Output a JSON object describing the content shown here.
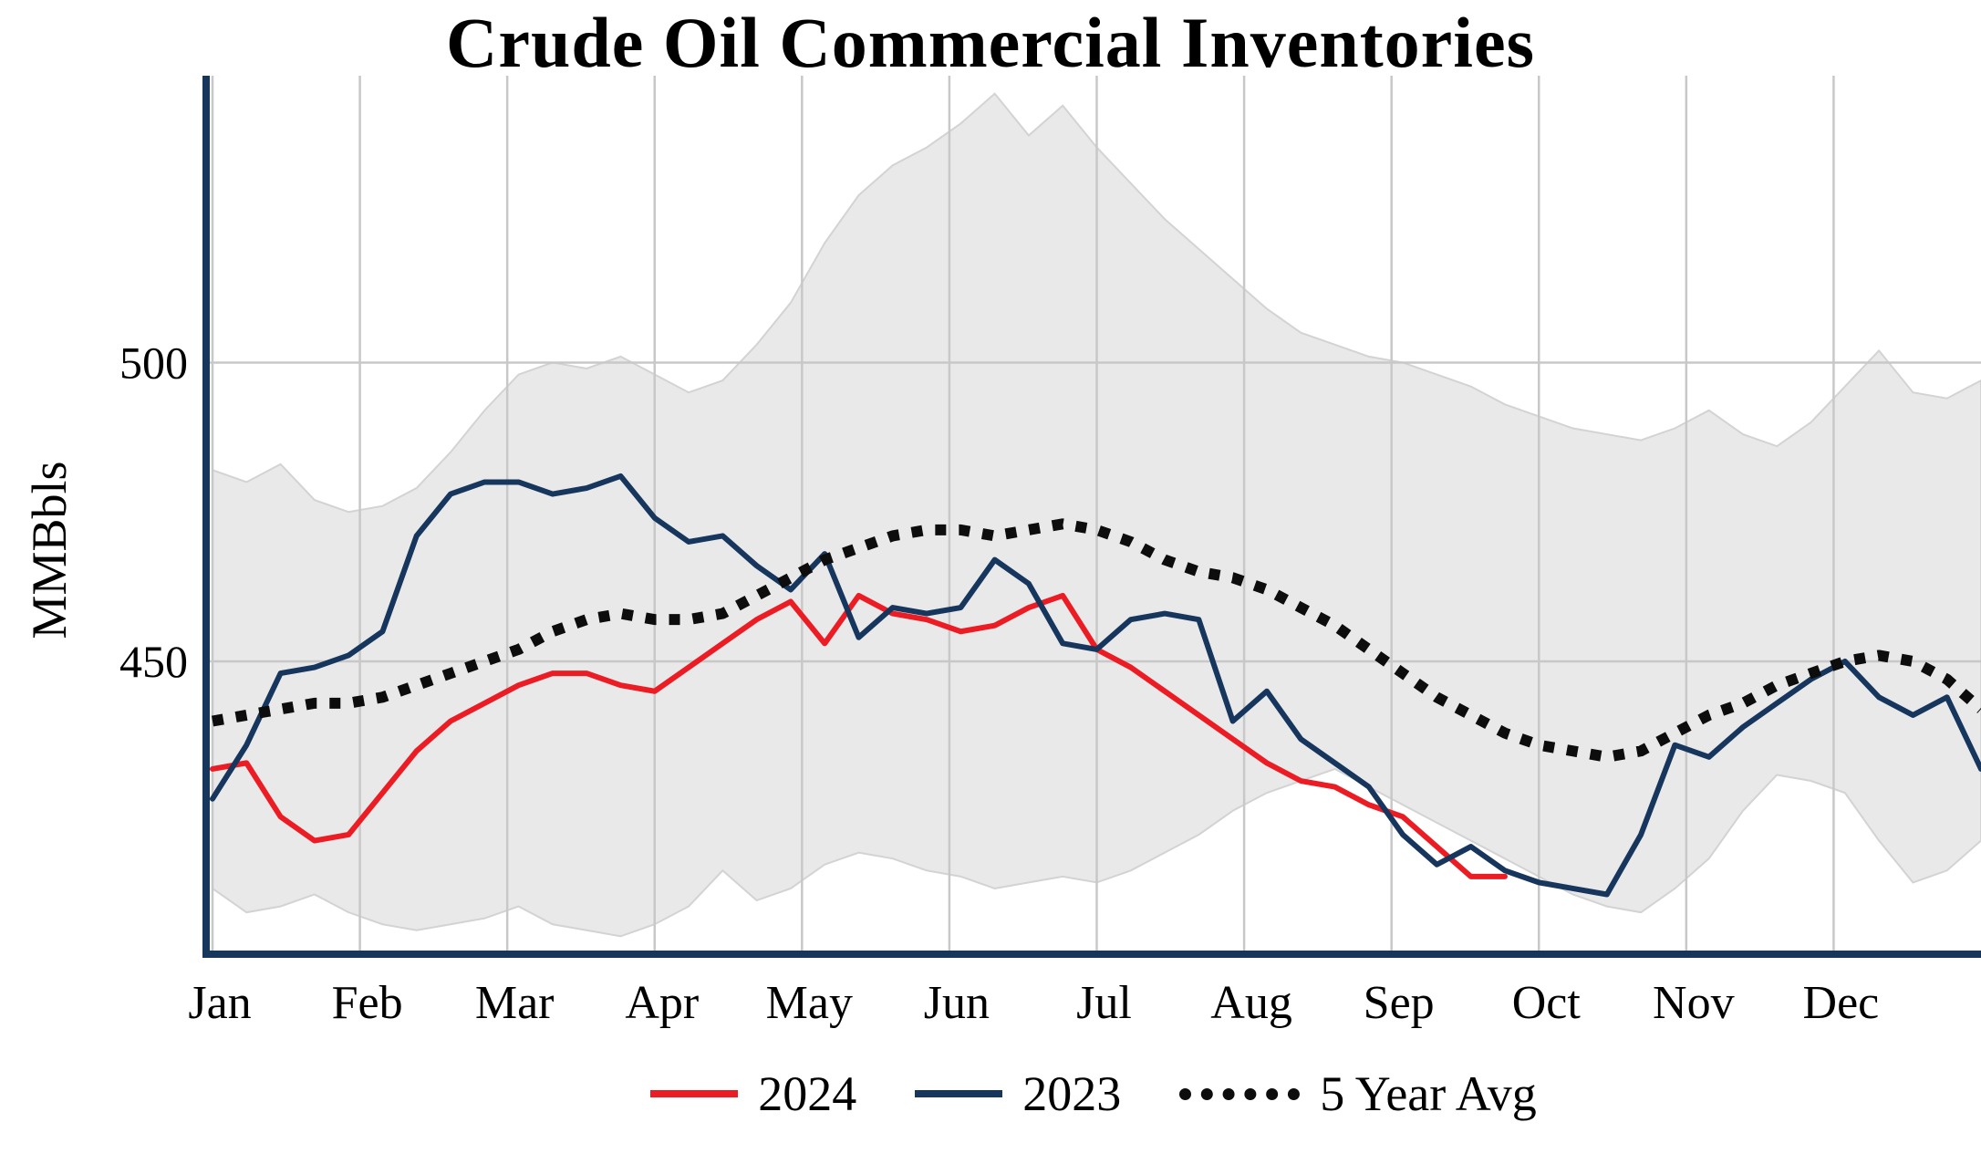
{
  "title": "Crude Oil Commercial Inventories",
  "ylabel": "MMBbls",
  "colors": {
    "accent_2024": "#ec1c24",
    "accent_2023": "#17365d",
    "avg_line": "#0d0d0d",
    "band_fill": "#e9e9e9",
    "band_edge": "#d3d3d3",
    "grid": "#c8c8c8",
    "axis": "#16365c"
  },
  "legend": {
    "items": [
      {
        "label": "2024",
        "color": "#ec1c24",
        "style": "solid"
      },
      {
        "label": "2023",
        "color": "#17365d",
        "style": "solid"
      },
      {
        "label": "5 Year Avg",
        "color": "#0d0d0d",
        "style": "dotted"
      }
    ]
  },
  "chart_data": {
    "type": "line",
    "title": "Crude Oil Commercial Inventories",
    "xlabel": "",
    "ylabel": "MMBbls",
    "categories": [
      "Jan",
      "Feb",
      "Mar",
      "Apr",
      "May",
      "Jun",
      "Jul",
      "Aug",
      "Sep",
      "Oct",
      "Nov",
      "Dec"
    ],
    "yticks": [
      450,
      500
    ],
    "ylim": [
      401,
      548
    ],
    "x_unit": "week",
    "grid": true,
    "legend_position": "bottom",
    "series": [
      {
        "name": "2024",
        "color": "#ec1c24",
        "style": "solid",
        "values": [
          432,
          433,
          424,
          420,
          421,
          428,
          435,
          440,
          443,
          446,
          448,
          448,
          446,
          445,
          449,
          453,
          457,
          460,
          453,
          461,
          458,
          457,
          455,
          456,
          459,
          461,
          452,
          449,
          445,
          441,
          437,
          433,
          430,
          429,
          426,
          424,
          419,
          414,
          414
        ]
      },
      {
        "name": "2023",
        "color": "#17365d",
        "style": "solid",
        "values": [
          427,
          436,
          448,
          449,
          451,
          455,
          471,
          478,
          480,
          480,
          478,
          479,
          481,
          474,
          470,
          471,
          466,
          462,
          468,
          454,
          459,
          458,
          459,
          467,
          463,
          453,
          452,
          457,
          458,
          457,
          440,
          445,
          437,
          433,
          429,
          421,
          416,
          419,
          415,
          413,
          412,
          411,
          421,
          436,
          434,
          439,
          443,
          447,
          450,
          444,
          441,
          444,
          432
        ]
      },
      {
        "name": "5 Year Avg",
        "color": "#0d0d0d",
        "style": "dotted",
        "values": [
          440,
          441,
          442,
          443,
          443,
          444,
          446,
          448,
          450,
          452,
          455,
          457,
          458,
          457,
          457,
          458,
          461,
          464,
          467,
          469,
          471,
          472,
          472,
          471,
          472,
          473,
          472,
          470,
          467,
          465,
          464,
          462,
          459,
          456,
          452,
          448,
          444,
          441,
          438,
          436,
          435,
          434,
          435,
          438,
          441,
          443,
          446,
          448,
          450,
          451,
          450,
          447,
          442
        ]
      }
    ],
    "band": {
      "name": "5 Year Range",
      "fill": "#e9e9e9",
      "max": [
        482,
        480,
        483,
        477,
        475,
        476,
        479,
        485,
        492,
        498,
        500,
        499,
        501,
        498,
        495,
        497,
        503,
        510,
        520,
        528,
        533,
        536,
        540,
        545,
        538,
        543,
        536,
        530,
        524,
        519,
        514,
        509,
        505,
        503,
        501,
        500,
        498,
        496,
        493,
        491,
        489,
        488,
        487,
        489,
        492,
        488,
        486,
        490,
        496,
        502,
        495,
        494,
        497
      ],
      "min": [
        412,
        408,
        409,
        411,
        408,
        406,
        405,
        406,
        407,
        409,
        406,
        405,
        404,
        406,
        409,
        415,
        410,
        412,
        416,
        418,
        417,
        415,
        414,
        412,
        413,
        414,
        413,
        415,
        418,
        421,
        425,
        428,
        430,
        432,
        429,
        426,
        423,
        420,
        417,
        414,
        411,
        409,
        408,
        412,
        417,
        425,
        431,
        430,
        428,
        420,
        413,
        415,
        420
      ]
    }
  }
}
